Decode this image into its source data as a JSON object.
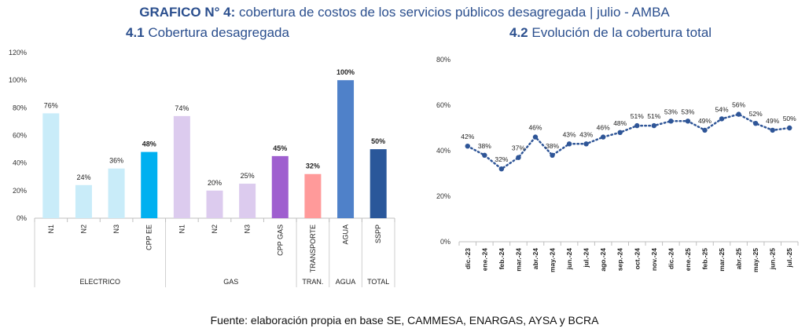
{
  "header": {
    "title_bold": "GRAFICO N° 4:",
    "title_rest": " cobertura de costos de los servicios públicos desagregada | julio - AMBA",
    "sub1_num": "4.1",
    "sub1_text": " Cobertura desagregada",
    "sub2_num": "4.2",
    "sub2_text": " Evolución de la cobertura total"
  },
  "source": "Fuente: elaboración propia en base SE, CAMMESA, ENARGAS, AYSA y BCRA",
  "chart_data": [
    {
      "type": "bar",
      "title": "4.1 Cobertura desagregada",
      "ylim": [
        0,
        120
      ],
      "yticks": [
        "0%",
        "20%",
        "40%",
        "60%",
        "80%",
        "100%",
        "120%"
      ],
      "categories": [
        "N1",
        "N2",
        "N3",
        "CPP EE",
        "N1",
        "N2",
        "N3",
        "CPP GAS",
        "TRANSPORTE",
        "AGUA",
        "SSPP"
      ],
      "values": [
        76,
        24,
        36,
        48,
        74,
        20,
        25,
        45,
        32,
        100,
        50
      ],
      "labels": [
        "76%",
        "24%",
        "36%",
        "48%",
        "74%",
        "20%",
        "25%",
        "45%",
        "32%",
        "100%",
        "50%"
      ],
      "bold": [
        false,
        false,
        false,
        true,
        false,
        false,
        false,
        true,
        true,
        true,
        true
      ],
      "colors": [
        "#c9ecf9",
        "#c9ecf9",
        "#c9ecf9",
        "#00b0f0",
        "#dccbee",
        "#dccbee",
        "#dccbee",
        "#9f5fcf",
        "#ff9a9a",
        "#4f81c9",
        "#2a579a"
      ],
      "groups": [
        {
          "label": "ELECTRICO",
          "count": 4
        },
        {
          "label": "GAS",
          "count": 4
        },
        {
          "label": "TRAN.",
          "count": 1
        },
        {
          "label": "AGUA",
          "count": 1
        },
        {
          "label": "TOTAL",
          "count": 1
        }
      ]
    },
    {
      "type": "line",
      "title": "4.2 Evolución de la cobertura total",
      "ylim": [
        0,
        80
      ],
      "yticks": [
        "0%",
        "20%",
        "40%",
        "60%",
        "80%"
      ],
      "x": [
        "dic.-23",
        "ene.-24",
        "feb.-24",
        "mar.-24",
        "abr.-24",
        "may.-24",
        "jun.-24",
        "jul.-24",
        "ago.-24",
        "sep.-24",
        "oct.-24",
        "nov.-24",
        "dic.-24",
        "ene.-25",
        "feb.-25",
        "mar.-25",
        "abr.-25",
        "may.-25",
        "jun.-25",
        "jul.-25"
      ],
      "values": [
        42,
        38,
        32,
        37,
        46,
        38,
        43,
        43,
        46,
        48,
        51,
        51,
        53,
        53,
        49,
        54,
        56,
        52,
        49,
        50
      ],
      "labels": [
        "42%",
        "38%",
        "32%",
        "37%",
        "46%",
        "38%",
        "43%",
        "43%",
        "46%",
        "48%",
        "51%",
        "51%",
        "53%",
        "53%",
        "49%",
        "54%",
        "56%",
        "52%",
        "49%",
        "50%"
      ],
      "color": "#2e5597"
    }
  ]
}
